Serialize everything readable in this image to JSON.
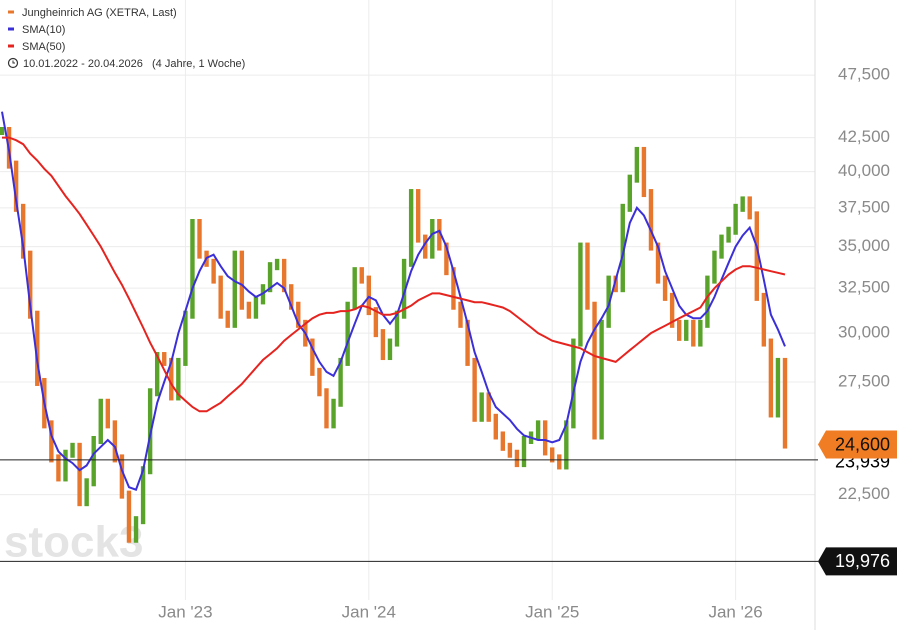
{
  "chart_data": {
    "type": "stock",
    "date_range": "10.01.2022 - 20.04.2026",
    "period": "(4 Jahre, 1 Woche)",
    "watermark": "stock3",
    "log_scale": true,
    "grid": true,
    "up_color": "#5aa32b",
    "down_color": "#e8772e",
    "categories": [
      null,
      null,
      null,
      null,
      null,
      null,
      null,
      null,
      null,
      null,
      null,
      null,
      null,
      null,
      null,
      null,
      null,
      null,
      null,
      null,
      null,
      null,
      null,
      null,
      null,
      null,
      "Jan '23",
      null,
      null,
      null,
      null,
      null,
      null,
      null,
      null,
      null,
      null,
      null,
      null,
      null,
      null,
      null,
      null,
      null,
      null,
      null,
      null,
      null,
      null,
      null,
      null,
      null,
      "Jan '24",
      null,
      null,
      null,
      null,
      null,
      null,
      null,
      null,
      null,
      null,
      null,
      null,
      null,
      null,
      null,
      null,
      null,
      null,
      null,
      null,
      null,
      null,
      null,
      null,
      null,
      "Jan '25",
      null,
      null,
      null,
      null,
      null,
      null,
      null,
      null,
      null,
      null,
      null,
      null,
      null,
      null,
      null,
      null,
      null,
      null,
      null,
      null,
      null,
      null,
      null,
      null,
      null,
      "Jan '26",
      null,
      null,
      null,
      null,
      null,
      null,
      null
    ],
    "series": [
      {
        "name": "Jungheinrich AG (XETRA, Last)",
        "color": "#e8772e",
        "values": [
          43000,
          40500,
          37500,
          34500,
          31000,
          27500,
          25500,
          24000,
          23200,
          24200,
          24500,
          22200,
          23000,
          24800,
          26500,
          25500,
          24000,
          22500,
          20800,
          21500,
          23500,
          27000,
          28800,
          28500,
          26800,
          28500,
          31000,
          36500,
          34500,
          34000,
          33000,
          31000,
          30500,
          34500,
          31500,
          31000,
          31800,
          32500,
          33800,
          34000,
          32500,
          31500,
          30500,
          29500,
          28000,
          27000,
          25500,
          26500,
          28500,
          31500,
          33500,
          33000,
          31200,
          30000,
          28800,
          29500,
          31000,
          34000,
          38500,
          35500,
          34500,
          36500,
          35000,
          33500,
          31500,
          30500,
          28500,
          25800,
          26800,
          25800,
          25000,
          24500,
          24200,
          23800,
          24800,
          25000,
          25500,
          24300,
          24000,
          23700,
          25500,
          29500,
          35000,
          31500,
          25000,
          30500,
          33000,
          32500,
          37500,
          39500,
          41500,
          38500,
          35000,
          33000,
          32000,
          30500,
          29800,
          30500,
          29500,
          30500,
          33000,
          34500,
          35500,
          36000,
          37500,
          38000,
          37000,
          32000,
          29500,
          26000,
          28500,
          24600
        ]
      },
      {
        "name": "SMA(10)",
        "color": "#3b2fd8",
        "values": [
          44500,
          41500,
          38000,
          35000,
          31500,
          28500,
          26500,
          25000,
          24300,
          24000,
          23800,
          23500,
          23700,
          24200,
          24500,
          24800,
          24500,
          23500,
          22800,
          22700,
          23500,
          25000,
          26500,
          27500,
          28500,
          30000,
          31200,
          32500,
          33500,
          34300,
          34500,
          33800,
          33200,
          32900,
          32700,
          32300,
          32000,
          32200,
          32500,
          32800,
          32500,
          31500,
          30500,
          30000,
          29200,
          28500,
          28000,
          27800,
          28500,
          29500,
          30500,
          31500,
          32000,
          31800,
          31000,
          30500,
          31000,
          32200,
          33500,
          34500,
          35200,
          35800,
          36000,
          35000,
          33500,
          32000,
          30500,
          29000,
          28000,
          27000,
          26300,
          26000,
          25700,
          25300,
          25000,
          24900,
          24800,
          24800,
          24700,
          24800,
          25500,
          27000,
          28500,
          29500,
          30200,
          30800,
          31500,
          33000,
          34500,
          36500,
          37500,
          37000,
          36000,
          35000,
          33500,
          32500,
          31500,
          31000,
          30800,
          30800,
          31200,
          32000,
          33000,
          34000,
          35000,
          35700,
          36200,
          35000,
          33000,
          31000,
          30200,
          29300
        ]
      },
      {
        "name": "SMA(50)",
        "color": "#e52420",
        "values": [
          42500,
          42500,
          42300,
          42000,
          41300,
          40800,
          40200,
          39700,
          39000,
          38300,
          37700,
          37100,
          36400,
          35700,
          35000,
          34200,
          33400,
          32700,
          31900,
          31100,
          30300,
          29500,
          28800,
          28100,
          27400,
          26900,
          26600,
          26300,
          26100,
          26100,
          26300,
          26500,
          26800,
          27100,
          27400,
          27800,
          28200,
          28600,
          28900,
          29200,
          29600,
          29900,
          30200,
          30500,
          30800,
          31000,
          31100,
          31100,
          31200,
          31200,
          31300,
          31500,
          31400,
          31200,
          31000,
          31000,
          31100,
          31300,
          31500,
          31800,
          32000,
          32200,
          32200,
          32100,
          32000,
          31900,
          31800,
          31700,
          31700,
          31600,
          31500,
          31400,
          31200,
          30900,
          30600,
          30300,
          30000,
          29800,
          29600,
          29500,
          29400,
          29300,
          29200,
          29000,
          28800,
          28700,
          28600,
          28500,
          28800,
          29100,
          29400,
          29700,
          30000,
          30200,
          30400,
          30600,
          30800,
          31000,
          31200,
          31400,
          32000,
          32500,
          32900,
          33300,
          33600,
          33800,
          33800,
          33700,
          33600,
          33500,
          33400,
          33300
        ]
      }
    ],
    "ylim": [
      18650,
      54300
    ],
    "yticks": [
      {
        "value": 22500,
        "label": "22,500"
      },
      {
        "value": 27500,
        "label": "27,500"
      },
      {
        "value": 30000,
        "label": "30,000"
      },
      {
        "value": 32500,
        "label": "32,500"
      },
      {
        "value": 35000,
        "label": "35,000"
      },
      {
        "value": 37500,
        "label": "37,500"
      },
      {
        "value": 40000,
        "label": "40,000"
      },
      {
        "value": 42500,
        "label": "42,500"
      },
      {
        "value": 47500,
        "label": "47,500"
      }
    ],
    "levels": [
      {
        "value": 23939,
        "label": "23,939",
        "color": "#000000",
        "boxed": false
      },
      {
        "value": 24600,
        "label": "24,600",
        "color": "#f07d24",
        "boxed": true
      },
      {
        "value": 19976,
        "label": "19,976",
        "color": "#111111",
        "boxed": true
      }
    ]
  }
}
